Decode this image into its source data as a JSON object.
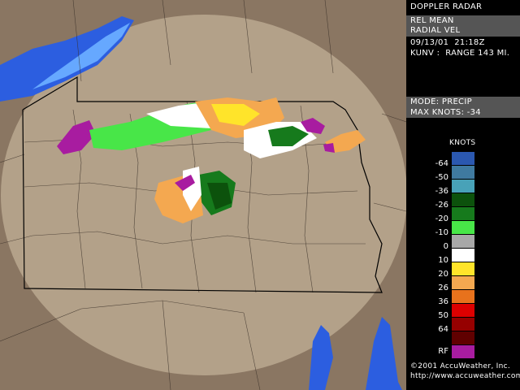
{
  "panel": {
    "title": "DOPPLER RADAR",
    "product_line1": "REL MEAN",
    "product_line2": "RADIAL VEL",
    "datetime": "09/13/01  21:18Z",
    "station": "KUNV :  RANGE 143 MI.",
    "mode": "MODE: PRECIP",
    "max_knots": "MAX KNOTS: -34"
  },
  "legend": {
    "title": "KNOTS",
    "colors": [
      "#2b58b0",
      "#3f7aa0",
      "#48a2b8",
      "#0c520c",
      "#167a1c",
      "#48e648",
      "#a8a8a8",
      "#ffffff",
      "#ffe42a",
      "#f4a850",
      "#e8721c",
      "#dc0000",
      "#960000",
      "#600000"
    ],
    "labels": [
      "-64",
      "-50",
      "-36",
      "-26",
      "-20",
      "-10",
      "0",
      "10",
      "20",
      "26",
      "36",
      "50",
      "64"
    ],
    "rf_label": "RF",
    "rf_color": "#a81ca0"
  },
  "footer": {
    "copyright": "©2001 AccuWeather, Inc.",
    "url": "http://www.accuweather.com"
  },
  "map_colors": {
    "outside": "#8a7662",
    "inside": "#b3a189",
    "lake": "#2c5ee0",
    "lake_shallow": "#66a8ff"
  }
}
